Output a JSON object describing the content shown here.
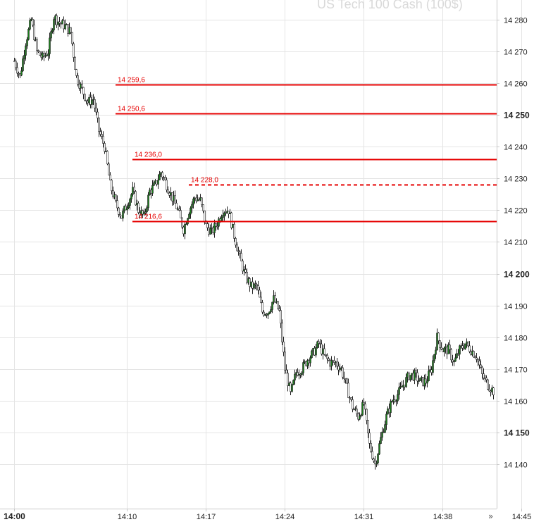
{
  "chart_data": {
    "type": "candlestick",
    "title": "US Tech 100 Cash (100$)",
    "ylim": [
      14130,
      14284
    ],
    "y_ticks": [
      {
        "value": 14280,
        "label": "14 280",
        "bold": false
      },
      {
        "value": 14270,
        "label": "14 270",
        "bold": false
      },
      {
        "value": 14260,
        "label": "14 260",
        "bold": false
      },
      {
        "value": 14250,
        "label": "14 250",
        "bold": true
      },
      {
        "value": 14240,
        "label": "14 240",
        "bold": false
      },
      {
        "value": 14230,
        "label": "14 230",
        "bold": false
      },
      {
        "value": 14220,
        "label": "14 220",
        "bold": false
      },
      {
        "value": 14210,
        "label": "14 210",
        "bold": false
      },
      {
        "value": 14200,
        "label": "14 200",
        "bold": true
      },
      {
        "value": 14190,
        "label": "14 190",
        "bold": false
      },
      {
        "value": 14180,
        "label": "14 180",
        "bold": false
      },
      {
        "value": 14170,
        "label": "14 170",
        "bold": false
      },
      {
        "value": 14160,
        "label": "14 160",
        "bold": false
      },
      {
        "value": 14150,
        "label": "14 150",
        "bold": true
      },
      {
        "value": 14140,
        "label": "14 140",
        "bold": false
      }
    ],
    "x_ticks": [
      {
        "time": "14:00",
        "label": "14:00",
        "bold": true
      },
      {
        "time": "14:10",
        "label": "14:10",
        "bold": false
      },
      {
        "time": "14:17",
        "label": "14:17",
        "bold": false
      },
      {
        "time": "14:24",
        "label": "14:24",
        "bold": false
      },
      {
        "time": "14:31",
        "label": "14:31",
        "bold": false
      },
      {
        "time": "14:38",
        "label": "14:38",
        "bold": false
      },
      {
        "time": "14:45",
        "label": "14:45",
        "bold": false
      }
    ],
    "levels": [
      {
        "value": 14259.6,
        "label": "14 259,6",
        "style": "solid",
        "start_time": "14:09"
      },
      {
        "value": 14250.6,
        "label": "14 250,6",
        "style": "solid",
        "start_time": "14:09"
      },
      {
        "value": 14236.0,
        "label": "14 236,0",
        "style": "solid",
        "start_time": "14:10.5"
      },
      {
        "value": 14228.0,
        "label": "14 228,0",
        "style": "dashed",
        "start_time": "14:15.5"
      },
      {
        "value": 14216.6,
        "label": "14 216,6",
        "style": "solid",
        "start_time": "14:10.5"
      }
    ],
    "close_path": [
      [
        "14:00",
        14267
      ],
      [
        "14:00.5",
        14262
      ],
      [
        "14:01",
        14273
      ],
      [
        "14:01.5",
        14280
      ],
      [
        "14:02",
        14270
      ],
      [
        "14:02.5",
        14268
      ],
      [
        "14:03",
        14270
      ],
      [
        "14:03.5",
        14281
      ],
      [
        "14:04",
        14279
      ],
      [
        "14:04.5",
        14278
      ],
      [
        "14:05",
        14276
      ],
      [
        "14:05.5",
        14262
      ],
      [
        "14:06",
        14258
      ],
      [
        "14:06.5",
        14254
      ],
      [
        "14:07",
        14255
      ],
      [
        "14:07.5",
        14245
      ],
      [
        "14:08",
        14240
      ],
      [
        "14:08.5",
        14228
      ],
      [
        "14:09",
        14222
      ],
      [
        "14:09.5",
        14218
      ],
      [
        "14:10",
        14222
      ],
      [
        "14:10.5",
        14226
      ],
      [
        "14:11",
        14220
      ],
      [
        "14:11.5",
        14218
      ],
      [
        "14:12",
        14226
      ],
      [
        "14:12.5",
        14228
      ],
      [
        "14:13",
        14232
      ],
      [
        "14:13.5",
        14228
      ],
      [
        "14:14",
        14224
      ],
      [
        "14:14.5",
        14220
      ],
      [
        "14:15",
        14214
      ],
      [
        "14:15.5",
        14220
      ],
      [
        "14:16",
        14224
      ],
      [
        "14:16.5",
        14223
      ],
      [
        "14:17",
        14215
      ],
      [
        "14:17.5",
        14213
      ],
      [
        "14:18",
        14216
      ],
      [
        "14:18.5",
        14220
      ],
      [
        "14:19",
        14220
      ],
      [
        "14:19.5",
        14212
      ],
      [
        "14:20",
        14205
      ],
      [
        "14:20.5",
        14199
      ],
      [
        "14:21",
        14196
      ],
      [
        "14:21.5",
        14196
      ],
      [
        "14:22",
        14188
      ],
      [
        "14:22.5",
        14188
      ],
      [
        "14:23",
        14192
      ],
      [
        "14:23.5",
        14188
      ],
      [
        "14:24",
        14170
      ],
      [
        "14:24.5",
        14162
      ],
      [
        "14:25",
        14169
      ],
      [
        "14:25.5",
        14170
      ],
      [
        "14:26",
        14173
      ],
      [
        "14:26.5",
        14175
      ],
      [
        "14:27",
        14178
      ],
      [
        "14:27.5",
        14174
      ],
      [
        "14:28",
        14172
      ],
      [
        "14:28.5",
        14172
      ],
      [
        "14:29",
        14170
      ],
      [
        "14:29.5",
        14164
      ],
      [
        "14:30",
        14158
      ],
      [
        "14:30.5",
        14155
      ],
      [
        "14:31",
        14159
      ],
      [
        "14:31.5",
        14146
      ],
      [
        "14:32",
        14140
      ],
      [
        "14:32.5",
        14148
      ],
      [
        "14:33",
        14155
      ],
      [
        "14:33.5",
        14160
      ],
      [
        "14:34",
        14162
      ],
      [
        "14:34.5",
        14165
      ],
      [
        "14:35",
        14168
      ],
      [
        "14:35.5",
        14168
      ],
      [
        "14:36",
        14166
      ],
      [
        "14:36.5",
        14166
      ],
      [
        "14:37",
        14170
      ],
      [
        "14:37.5",
        14180
      ],
      [
        "14:38",
        14176
      ],
      [
        "14:38.5",
        14176
      ],
      [
        "14:39",
        14172
      ],
      [
        "14:39.5",
        14176
      ],
      [
        "14:40",
        14178
      ],
      [
        "14:40.5",
        14176
      ],
      [
        "14:41",
        14174
      ],
      [
        "14:41.5",
        14168
      ],
      [
        "14:42",
        14165
      ],
      [
        "14:42.5",
        14163
      ]
    ],
    "bull_color": "#1b7a1b",
    "bear_color": "#b00000",
    "level_color": "#e60000",
    "grid": true,
    "axis_position": "right"
  },
  "ui": {
    "scroll_right_glyph": "»"
  }
}
